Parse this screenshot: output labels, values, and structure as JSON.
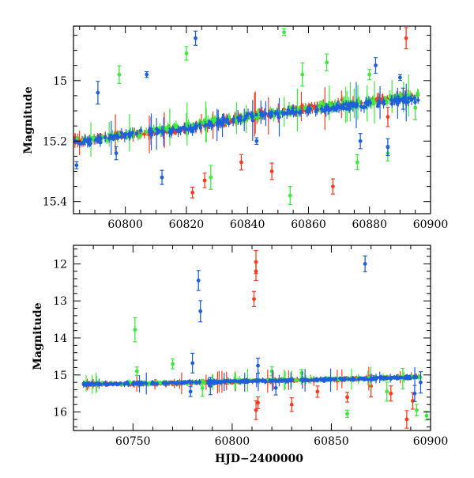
{
  "chart_data": [
    {
      "type": "scatter",
      "title": "",
      "xlabel": "",
      "ylabel": "Magnitude",
      "xlim": [
        60783,
        60900
      ],
      "ylim": [
        15.44,
        14.82
      ],
      "y_inverted": true,
      "xticks": [
        60800,
        60820,
        60840,
        60860,
        60880,
        60900
      ],
      "yticks": [
        15,
        15.2,
        15.4
      ],
      "xtick_labels": [
        "60800",
        "60820",
        "60840",
        "60860",
        "60880",
        "60900"
      ],
      "ytick_labels": [
        "15",
        "15.2",
        "15.4"
      ],
      "errorbars": true,
      "series": [
        {
          "color": "#ff3b1f",
          "trend": [
            [
              60783,
              15.2
            ],
            [
              60800,
              15.18
            ],
            [
              60820,
              15.16
            ],
            [
              60840,
              15.12
            ],
            [
              60860,
              15.09
            ],
            [
              60880,
              15.07
            ],
            [
              60896,
              15.05
            ]
          ],
          "outliers": [
            [
              60822,
              15.37
            ],
            [
              60826,
              15.33
            ],
            [
              60838,
              15.27
            ],
            [
              60848,
              15.3
            ],
            [
              60868,
              15.35
            ],
            [
              60886,
              15.12
            ],
            [
              60892,
              14.86
            ]
          ]
        },
        {
          "color": "#3dea3d",
          "trend": [
            [
              60783,
              15.2
            ],
            [
              60800,
              15.18
            ],
            [
              60820,
              15.15
            ],
            [
              60840,
              15.12
            ],
            [
              60860,
              15.09
            ],
            [
              60880,
              15.07
            ],
            [
              60896,
              15.05
            ]
          ],
          "outliers": [
            [
              60798,
              14.98
            ],
            [
              60820,
              14.91
            ],
            [
              60828,
              15.32
            ],
            [
              60852,
              14.84
            ],
            [
              60854,
              15.38
            ],
            [
              60858,
              14.98
            ],
            [
              60866,
              14.94
            ],
            [
              60876,
              15.27
            ],
            [
              60880,
              14.98
            ],
            [
              60886,
              15.24
            ],
            [
              60895,
              15.09
            ]
          ]
        },
        {
          "color": "#1f5fdc",
          "trend": [
            [
              60783,
              15.21
            ],
            [
              60800,
              15.18
            ],
            [
              60820,
              15.16
            ],
            [
              60840,
              15.12
            ],
            [
              60860,
              15.1
            ],
            [
              60880,
              15.08
            ],
            [
              60896,
              15.06
            ]
          ],
          "outliers": [
            [
              60784,
              15.28
            ],
            [
              60791,
              15.04
            ],
            [
              60797,
              15.24
            ],
            [
              60807,
              14.98
            ],
            [
              60812,
              15.32
            ],
            [
              60823,
              14.86
            ],
            [
              60843,
              15.2
            ],
            [
              60877,
              15.2
            ],
            [
              60882,
              14.95
            ],
            [
              60886,
              15.22
            ],
            [
              60890,
              14.99
            ],
            [
              60891,
              15.06
            ]
          ]
        }
      ]
    },
    {
      "type": "scatter",
      "title": "",
      "xlabel": "HJD−2400000",
      "ylabel": "Magnitude",
      "xlim": [
        60720,
        60900
      ],
      "ylim": [
        16.5,
        11.5
      ],
      "y_inverted": true,
      "xticks": [
        60750,
        60800,
        60850,
        60900
      ],
      "yticks": [
        12,
        13,
        14,
        15,
        16
      ],
      "xtick_labels": [
        "60750",
        "60800",
        "60850",
        "60900"
      ],
      "ytick_labels": [
        "12",
        "13",
        "14",
        "15",
        "16"
      ],
      "errorbars": true,
      "series": [
        {
          "color": "#ff3b1f",
          "trend": [
            [
              60725,
              15.25
            ],
            [
              60760,
              15.24
            ],
            [
              60800,
              15.18
            ],
            [
              60850,
              15.12
            ],
            [
              60895,
              15.05
            ]
          ],
          "outliers": [
            [
              60812,
              11.95
            ],
            [
              60812,
              12.2
            ],
            [
              60811,
              12.95
            ],
            [
              60812,
              15.95
            ],
            [
              60813,
              15.75
            ],
            [
              60830,
              15.8
            ],
            [
              60843,
              15.45
            ],
            [
              60858,
              15.6
            ],
            [
              60870,
              15.3
            ],
            [
              60880,
              15.5
            ],
            [
              60888,
              16.2
            ],
            [
              60891,
              15.7
            ]
          ]
        },
        {
          "color": "#3dea3d",
          "trend": [
            [
              60725,
              15.24
            ],
            [
              60760,
              15.22
            ],
            [
              60800,
              15.17
            ],
            [
              60850,
              15.11
            ],
            [
              60895,
              15.06
            ]
          ],
          "outliers": [
            [
              60751,
              13.78
            ],
            [
              60752,
              14.9
            ],
            [
              60770,
              14.7
            ],
            [
              60785,
              15.35
            ],
            [
              60820,
              14.9
            ],
            [
              60835,
              14.95
            ],
            [
              60858,
              16.05
            ],
            [
              60878,
              15.45
            ],
            [
              60886,
              15.1
            ],
            [
              60893,
              15.95
            ],
            [
              60898,
              16.1
            ]
          ]
        },
        {
          "color": "#1f5fdc",
          "trend": [
            [
              60725,
              15.25
            ],
            [
              60760,
              15.23
            ],
            [
              60800,
              15.18
            ],
            [
              60850,
              15.12
            ],
            [
              60895,
              15.06
            ]
          ],
          "outliers": [
            [
              60783,
              12.45
            ],
            [
              60784,
              13.28
            ],
            [
              60780,
              14.68
            ],
            [
              60779,
              15.45
            ],
            [
              60789,
              15.3
            ],
            [
              60813,
              14.75
            ],
            [
              60822,
              15.35
            ],
            [
              60867,
              12.0
            ],
            [
              60892,
              15.5
            ],
            [
              60895,
              15.2
            ]
          ]
        }
      ]
    }
  ]
}
